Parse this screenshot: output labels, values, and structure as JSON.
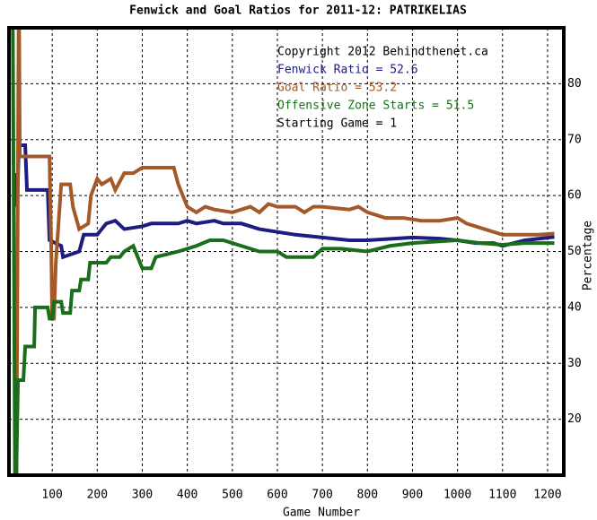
{
  "chart_data": {
    "type": "line",
    "title": "Fenwick and Goal Ratios for 2011-12: PATRIKELIAS",
    "xlabel": "Game Number",
    "ylabel": "Percentage",
    "annotations": [
      "Copyright 2012 Behindthenet.ca",
      "Starting Game = 1"
    ],
    "xlim": [
      4,
      1236
    ],
    "ylim": [
      10,
      90
    ],
    "xticks": [
      100,
      200,
      300,
      400,
      500,
      600,
      700,
      800,
      900,
      1000,
      1100,
      1200
    ],
    "yticks": [
      20,
      30,
      40,
      50,
      60,
      70,
      80
    ],
    "grid": true,
    "series": [
      {
        "name": "Fenwick Ratio = 52.6",
        "color": "#1c1c82",
        "x": [
          16,
          22,
          26,
          40,
          44,
          90,
          94,
          120,
          124,
          160,
          170,
          200,
          220,
          240,
          260,
          300,
          320,
          380,
          400,
          420,
          460,
          480,
          520,
          560,
          600,
          640,
          700,
          760,
          800,
          860,
          900,
          960,
          1000,
          1040,
          1080,
          1100,
          1150,
          1215
        ],
        "values": [
          64,
          58,
          69,
          69,
          61,
          61,
          52,
          51,
          49,
          50,
          53,
          53,
          55,
          55.5,
          54,
          54.5,
          55,
          55,
          55.5,
          55,
          55.5,
          55,
          55,
          54,
          53.5,
          53,
          52.5,
          52,
          52,
          52.3,
          52.5,
          52.3,
          52,
          51.5,
          51.5,
          51,
          52,
          52.6
        ]
      },
      {
        "name": "Goal Ratio = 53.2",
        "color": "#a45a28",
        "x": [
          20,
          26,
          28,
          94,
          96,
          98,
          100,
          104,
          108,
          120,
          140,
          146,
          160,
          180,
          186,
          200,
          210,
          230,
          240,
          260,
          280,
          300,
          370,
          380,
          390,
          400,
          420,
          440,
          460,
          500,
          540,
          560,
          580,
          600,
          640,
          660,
          680,
          700,
          760,
          780,
          800,
          840,
          880,
          920,
          960,
          1000,
          1020,
          1060,
          1100,
          1140,
          1180,
          1215
        ],
        "values": [
          0,
          100,
          67,
          67,
          58,
          50,
          38,
          38,
          48,
          62,
          62,
          58,
          54,
          55,
          60,
          63,
          62,
          63,
          61,
          64,
          64,
          65,
          65,
          62,
          60,
          58,
          57,
          58,
          57.5,
          57,
          58,
          57,
          58.5,
          58,
          58,
          57,
          58,
          58,
          57.5,
          58,
          57,
          56,
          56,
          55.5,
          55.5,
          56,
          55,
          54,
          53,
          53,
          53,
          53.2
        ]
      },
      {
        "name": "Offensive Zone Starts = 51.5",
        "color": "#1a6e1a",
        "x": [
          12,
          18,
          24,
          36,
          40,
          60,
          62,
          90,
          94,
          100,
          104,
          120,
          124,
          140,
          144,
          160,
          164,
          180,
          184,
          220,
          230,
          250,
          260,
          280,
          290,
          300,
          320,
          330,
          380,
          420,
          450,
          480,
          520,
          560,
          600,
          620,
          680,
          700,
          740,
          800,
          850,
          900,
          1000,
          1050,
          1100,
          1150,
          1215
        ],
        "values": [
          100,
          0,
          27,
          27,
          33,
          33,
          40,
          40,
          38,
          38,
          41,
          41,
          39,
          39,
          43,
          43,
          45,
          45,
          48,
          48,
          49,
          49,
          50,
          51,
          49,
          47,
          47,
          49,
          50,
          51,
          52,
          52,
          51,
          50,
          50,
          49,
          49,
          50.5,
          50.5,
          50,
          51,
          51.5,
          52,
          51.5,
          51.2,
          51.5,
          51.5
        ]
      }
    ]
  }
}
